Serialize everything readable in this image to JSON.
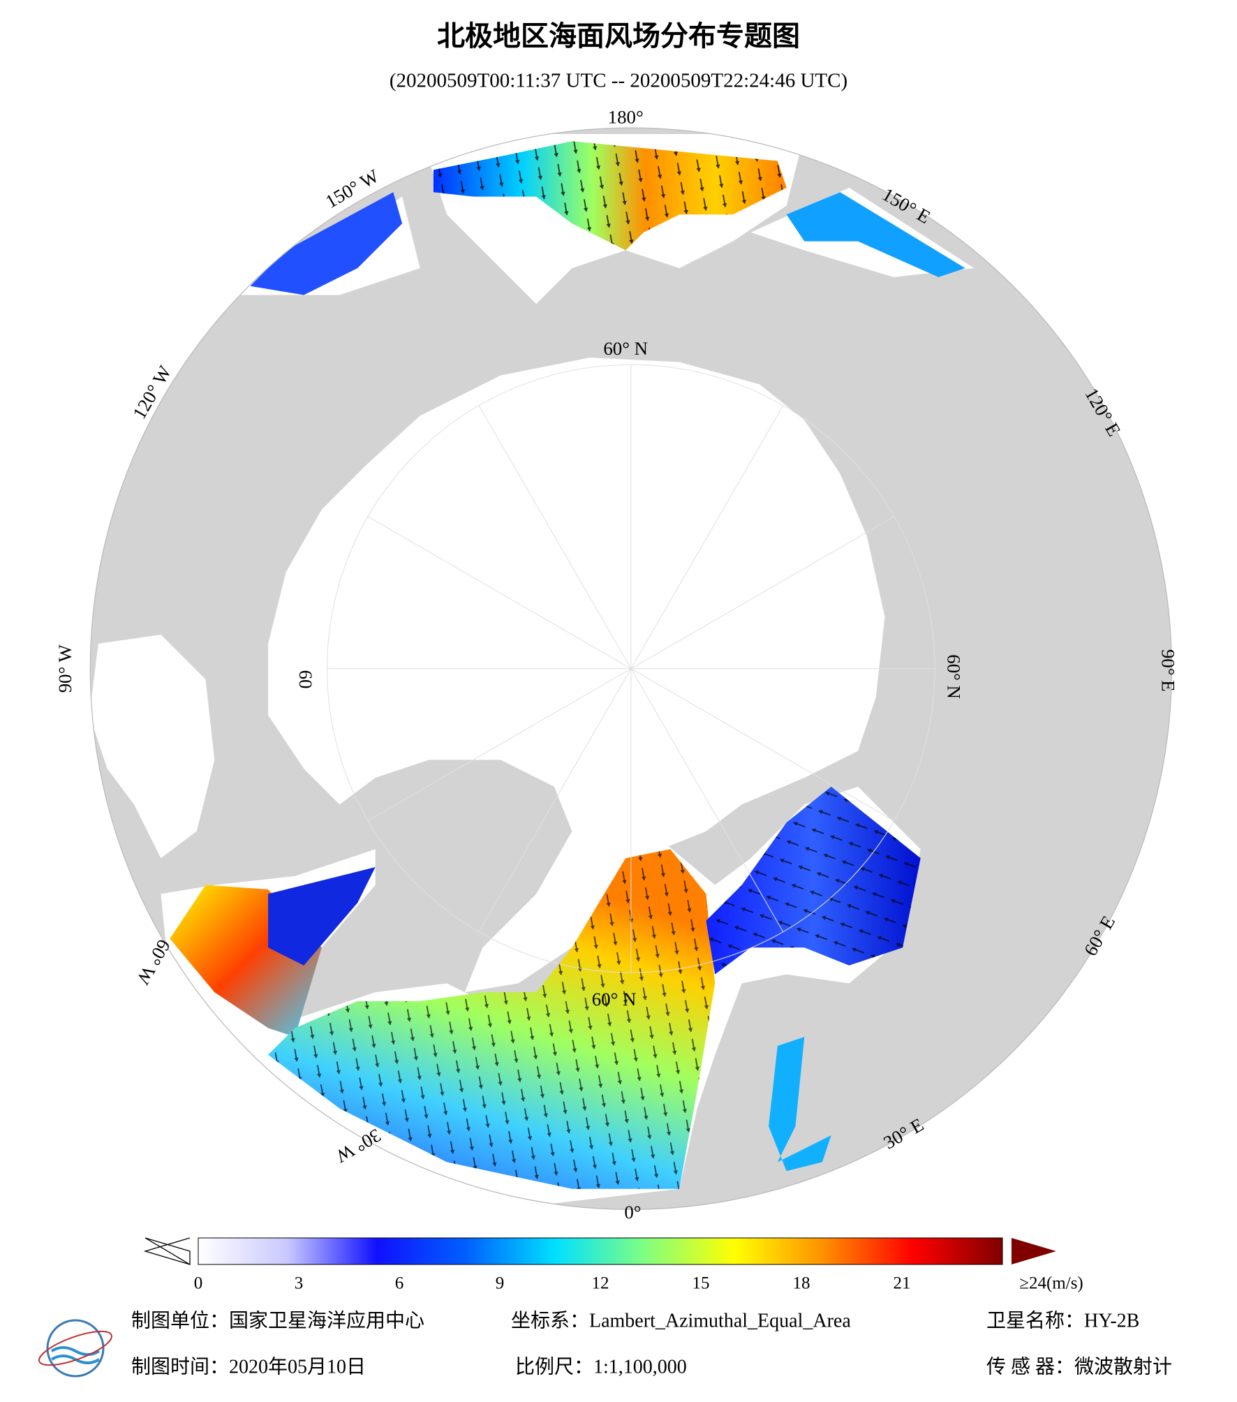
{
  "header": {
    "title": "北极地区海面风场分布专题图",
    "subtitle": "(20200509T00:11:37 UTC -- 20200509T22:24:46 UTC)"
  },
  "map": {
    "graticule_labels": [
      "180°",
      "150° W",
      "120° W",
      "90° W",
      "60° W",
      "30° W",
      "0°",
      "30° E",
      "60° E",
      "90° E",
      "120° E",
      "150° E",
      "60° N",
      "60° N",
      "60° N",
      "60"
    ]
  },
  "colorbar": {
    "range": [
      0,
      24
    ],
    "ticks": [
      0,
      3,
      6,
      9,
      12,
      15,
      18,
      21,
      {
        "value": 24,
        "label": "≥24(m/s)"
      }
    ],
    "colors": [
      "#ffffff",
      "#c8c8ff",
      "#1010ff",
      "#0060ff",
      "#00e0ff",
      "#80ff80",
      "#ffff00",
      "#ff9000",
      "#ff0000",
      "#800000"
    ]
  },
  "footer": {
    "items": [
      "制图单位：国家卫星海洋应用中心",
      "坐标系：Lambert_Azimuthal_Equal_Area",
      "卫星名称：HY-2B",
      "制图时间：2020年05月10日",
      "比例尺：1:1,100,000",
      "传 感 器：微波散射计"
    ]
  }
}
